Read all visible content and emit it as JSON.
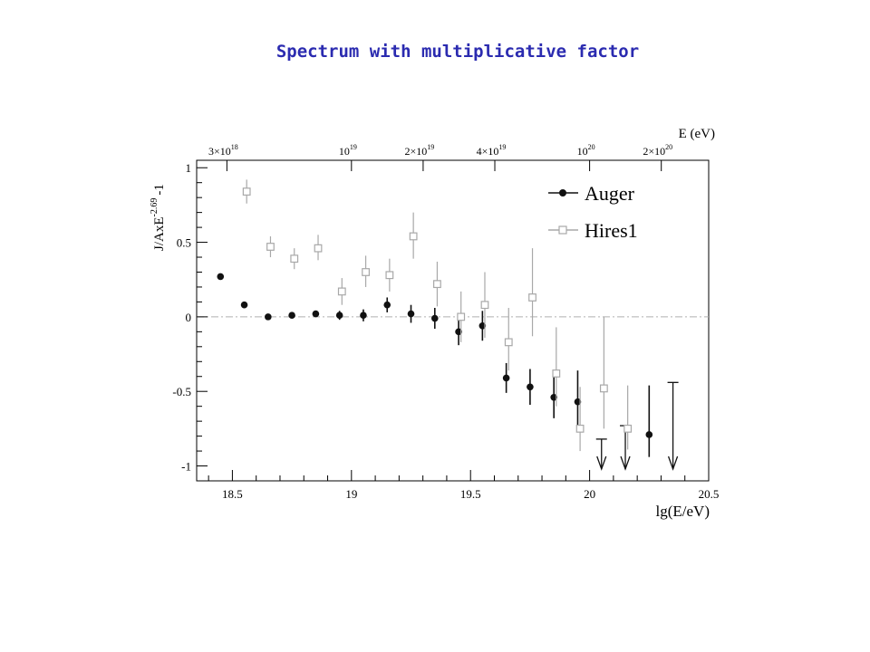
{
  "page_title": "Spectrum with multiplicative factor",
  "chart_data": {
    "type": "scatter",
    "title": "Spectrum with multiplicative factor",
    "xlabel": "lg(E/eV)",
    "ylabel": "J/AxE^-2.69 -1",
    "ylabel_parts": {
      "base": "J/AxE",
      "exponent": "-2.69",
      "suffix": "-1"
    },
    "top_axis_label": "E (eV)",
    "xlim": [
      18.35,
      20.5
    ],
    "ylim": [
      -1.1,
      1.05
    ],
    "x_ticks": [
      {
        "value": 18.5,
        "label": "18.5"
      },
      {
        "value": 19,
        "label": "19"
      },
      {
        "value": 19.5,
        "label": "19.5"
      },
      {
        "value": 20,
        "label": "20"
      },
      {
        "value": 20.5,
        "label": "20.5"
      }
    ],
    "y_ticks": [
      {
        "value": 1,
        "label": "1"
      },
      {
        "value": 0.5,
        "label": "0.5"
      },
      {
        "value": 0,
        "label": "0"
      },
      {
        "value": -0.5,
        "label": "-0.5"
      },
      {
        "value": -1,
        "label": "-1"
      }
    ],
    "top_ticks": [
      {
        "value": 18.477,
        "mantissa": "3×10",
        "exp": "18"
      },
      {
        "value": 19.0,
        "mantissa": "10",
        "exp": "19"
      },
      {
        "value": 19.301,
        "mantissa": "2×10",
        "exp": "19"
      },
      {
        "value": 19.602,
        "mantissa": "4×10",
        "exp": "19"
      },
      {
        "value": 20.0,
        "mantissa": "10",
        "exp": "20"
      },
      {
        "value": 20.301,
        "mantissa": "2×10",
        "exp": "20"
      }
    ],
    "reference_line": {
      "y": 0,
      "style": "dash-dot"
    },
    "legend": {
      "placement": "top-right",
      "entries": [
        "Auger",
        "Hires1"
      ]
    },
    "series": [
      {
        "name": "Auger",
        "marker": "filled-circle",
        "color": "#111111",
        "points": [
          {
            "x": 18.45,
            "y": 0.27,
            "lo": 0.27,
            "hi": 0.27
          },
          {
            "x": 18.55,
            "y": 0.08,
            "lo": 0.08,
            "hi": 0.08
          },
          {
            "x": 18.65,
            "y": 0.0,
            "lo": 0.0,
            "hi": 0.0
          },
          {
            "x": 18.75,
            "y": 0.01,
            "lo": 0.01,
            "hi": 0.01
          },
          {
            "x": 18.85,
            "y": 0.02,
            "lo": 0.02,
            "hi": 0.02
          },
          {
            "x": 18.95,
            "y": 0.01,
            "lo": -0.02,
            "hi": 0.04
          },
          {
            "x": 19.05,
            "y": 0.01,
            "lo": -0.03,
            "hi": 0.05
          },
          {
            "x": 19.15,
            "y": 0.08,
            "lo": 0.03,
            "hi": 0.13
          },
          {
            "x": 19.25,
            "y": 0.02,
            "lo": -0.04,
            "hi": 0.08
          },
          {
            "x": 19.35,
            "y": -0.01,
            "lo": -0.08,
            "hi": 0.06
          },
          {
            "x": 19.45,
            "y": -0.1,
            "lo": -0.19,
            "hi": -0.01
          },
          {
            "x": 19.55,
            "y": -0.06,
            "lo": -0.16,
            "hi": 0.04
          },
          {
            "x": 19.65,
            "y": -0.41,
            "lo": -0.51,
            "hi": -0.31
          },
          {
            "x": 19.75,
            "y": -0.47,
            "lo": -0.59,
            "hi": -0.35
          },
          {
            "x": 19.85,
            "y": -0.54,
            "lo": -0.68,
            "hi": -0.4
          },
          {
            "x": 19.95,
            "y": -0.57,
            "lo": -0.73,
            "hi": -0.36
          },
          {
            "x": 20.25,
            "y": -0.79,
            "lo": -0.94,
            "hi": -0.46
          }
        ],
        "upper_limits": [
          {
            "x": 20.05,
            "y": -0.82
          },
          {
            "x": 20.15,
            "y": -0.73
          },
          {
            "x": 20.35,
            "y": -0.44
          }
        ]
      },
      {
        "name": "Hires1",
        "marker": "open-square",
        "color": "#a8a8a8",
        "points": [
          {
            "x": 18.56,
            "y": 0.84,
            "lo": 0.76,
            "hi": 0.92
          },
          {
            "x": 18.66,
            "y": 0.47,
            "lo": 0.4,
            "hi": 0.54
          },
          {
            "x": 18.76,
            "y": 0.39,
            "lo": 0.32,
            "hi": 0.46
          },
          {
            "x": 18.86,
            "y": 0.46,
            "lo": 0.38,
            "hi": 0.55
          },
          {
            "x": 18.96,
            "y": 0.17,
            "lo": 0.08,
            "hi": 0.26
          },
          {
            "x": 19.06,
            "y": 0.3,
            "lo": 0.2,
            "hi": 0.41
          },
          {
            "x": 19.16,
            "y": 0.28,
            "lo": 0.17,
            "hi": 0.39
          },
          {
            "x": 19.26,
            "y": 0.54,
            "lo": 0.39,
            "hi": 0.7
          },
          {
            "x": 19.36,
            "y": 0.22,
            "lo": 0.07,
            "hi": 0.37
          },
          {
            "x": 19.46,
            "y": 0.0,
            "lo": -0.17,
            "hi": 0.17
          },
          {
            "x": 19.56,
            "y": 0.08,
            "lo": -0.14,
            "hi": 0.3
          },
          {
            "x": 19.66,
            "y": -0.17,
            "lo": -0.36,
            "hi": 0.06
          },
          {
            "x": 19.76,
            "y": 0.13,
            "lo": -0.13,
            "hi": 0.46
          },
          {
            "x": 19.86,
            "y": -0.38,
            "lo": -0.6,
            "hi": -0.07
          },
          {
            "x": 19.96,
            "y": -0.75,
            "lo": -0.9,
            "hi": -0.47
          },
          {
            "x": 20.06,
            "y": -0.48,
            "lo": -0.75,
            "hi": 0.0
          },
          {
            "x": 20.16,
            "y": -0.75,
            "lo": -0.89,
            "hi": -0.46
          }
        ]
      }
    ]
  }
}
